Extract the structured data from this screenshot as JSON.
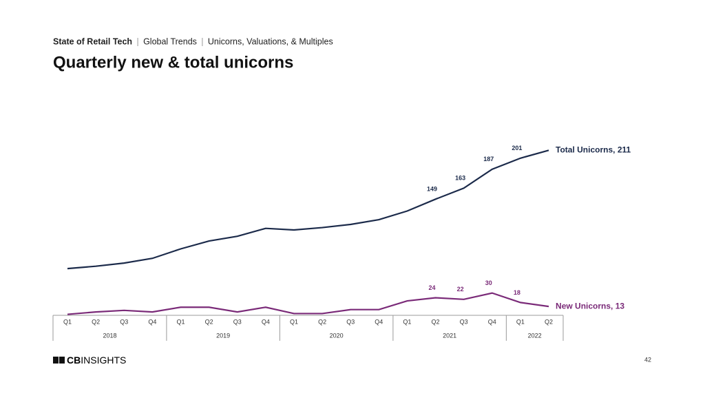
{
  "header": {
    "breadcrumb": [
      "State of Retail Tech",
      "Global Trends",
      "Unicorns, Valuations, & Multiples"
    ]
  },
  "chart_data": {
    "type": "line",
    "title": "Quarterly new & total unicorns",
    "categories": [
      "Q1",
      "Q2",
      "Q3",
      "Q4",
      "Q1",
      "Q2",
      "Q3",
      "Q4",
      "Q1",
      "Q2",
      "Q3",
      "Q4",
      "Q1",
      "Q2",
      "Q3",
      "Q4",
      "Q1",
      "Q2"
    ],
    "year_groups": [
      {
        "label": "2018",
        "quarters": 4
      },
      {
        "label": "2019",
        "quarters": 4
      },
      {
        "label": "2020",
        "quarters": 4
      },
      {
        "label": "2021",
        "quarters": 4
      },
      {
        "label": "2022",
        "quarters": 2
      }
    ],
    "ylim": [
      0,
      220
    ],
    "series": [
      {
        "color": "#1b2a4a",
        "values": [
          61,
          64,
          68,
          74,
          86,
          96,
          102,
          112,
          110,
          113,
          117,
          123,
          134,
          149,
          163,
          187,
          201,
          211
        ],
        "value_labels": [
          null,
          null,
          null,
          null,
          null,
          null,
          null,
          null,
          null,
          null,
          null,
          null,
          null,
          "149",
          "163",
          "187",
          "201",
          "Total Unicorns, 211"
        ]
      },
      {
        "color": "#7a2a78",
        "values": [
          3,
          6,
          8,
          6,
          12,
          12,
          6,
          12,
          4,
          4,
          9,
          9,
          20,
          24,
          22,
          30,
          18,
          13
        ],
        "value_labels": [
          null,
          null,
          null,
          null,
          null,
          null,
          null,
          null,
          null,
          null,
          null,
          null,
          null,
          "24",
          "22",
          "30",
          "18",
          "New Unicorns, 13"
        ]
      }
    ]
  },
  "footer": {
    "logo_bold": "CB",
    "logo_rest": "INSIGHTS",
    "page_number": "42"
  }
}
